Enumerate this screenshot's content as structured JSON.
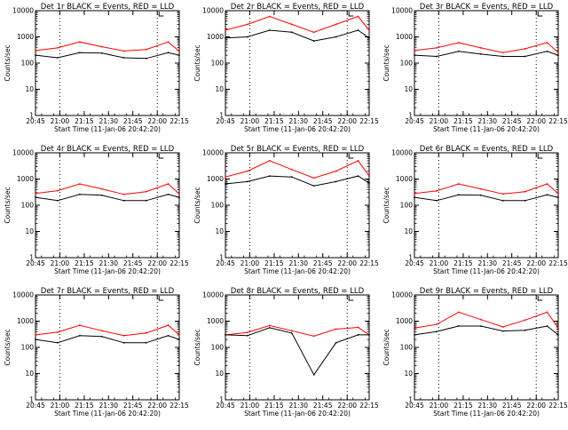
{
  "chart_data": [
    {
      "type": "line",
      "title": "Det 1r BLACK = Events, RED = LLD",
      "xlabel": "Start Time (11-Jan-06 20:42:20)",
      "ylabel": "Counts/sec",
      "yscale": "log",
      "ylim": [
        1,
        10000
      ],
      "xlim": [
        -4,
        35
      ],
      "xticks": [
        "20:45",
        "21:00",
        "21:15",
        "21:30",
        "21:45",
        "22:00",
        "22:15"
      ],
      "yticks": [
        "1",
        "10",
        "100",
        "1000",
        "10000"
      ],
      "vlines": [
        15,
        75
      ],
      "series": [
        {
          "name": "LLD",
          "color": "#ff0000",
          "x": [
            -4,
            2,
            8,
            14,
            20,
            26,
            32,
            35
          ],
          "y": [
            300,
            380,
            640,
            420,
            290,
            330,
            640,
            280
          ]
        },
        {
          "name": "Events",
          "color": "#000000",
          "x": [
            -4,
            2,
            8,
            14,
            20,
            26,
            32,
            35
          ],
          "y": [
            200,
            160,
            250,
            240,
            160,
            150,
            250,
            200
          ]
        }
      ]
    },
    {
      "type": "line",
      "title": "Det 2r BLACK = Events, RED = LLD",
      "xlabel": "Start Time (11-Jan-06 20:42:20)",
      "ylabel": "Counts/sec",
      "yscale": "log",
      "ylim": [
        1,
        10000
      ],
      "xlim": [
        -4,
        35
      ],
      "xticks": [
        "20:45",
        "21:00",
        "21:15",
        "21:30",
        "21:45",
        "22:00",
        "22:15"
      ],
      "yticks": [
        "1",
        "10",
        "100",
        "1000",
        "10000"
      ],
      "vlines": [
        15,
        75
      ],
      "series": [
        {
          "name": "LLD",
          "color": "#ff0000",
          "x": [
            -4,
            2,
            8,
            14,
            20,
            26,
            32,
            35
          ],
          "y": [
            1800,
            3000,
            6000,
            3000,
            1500,
            3000,
            6000,
            1800
          ]
        },
        {
          "name": "Events",
          "color": "#000000",
          "x": [
            -4,
            2,
            8,
            14,
            20,
            26,
            32,
            35
          ],
          "y": [
            900,
            1000,
            1800,
            1500,
            700,
            1000,
            1800,
            900
          ]
        }
      ]
    },
    {
      "type": "line",
      "title": "Det 3r BLACK = Events, RED = LLD",
      "xlabel": "Start Time (11-Jan-06 20:42:20)",
      "ylabel": "Counts/sec",
      "yscale": "log",
      "ylim": [
        1,
        10000
      ],
      "xlim": [
        -4,
        35
      ],
      "xticks": [
        "20:45",
        "21:00",
        "21:15",
        "21:30",
        "21:45",
        "22:00",
        "22:15"
      ],
      "yticks": [
        "1",
        "10",
        "100",
        "1000",
        "10000"
      ],
      "vlines": [
        15,
        75
      ],
      "series": [
        {
          "name": "LLD",
          "color": "#ff0000",
          "x": [
            -4,
            2,
            8,
            14,
            20,
            26,
            32,
            35
          ],
          "y": [
            300,
            380,
            600,
            380,
            250,
            350,
            600,
            250
          ]
        },
        {
          "name": "Events",
          "color": "#000000",
          "x": [
            -4,
            2,
            8,
            14,
            20,
            26,
            32,
            35
          ],
          "y": [
            200,
            180,
            280,
            220,
            180,
            180,
            280,
            200
          ]
        }
      ]
    },
    {
      "type": "line",
      "title": "Det 4r BLACK = Events, RED = LLD",
      "xlabel": "Start Time (11-Jan-06 20:42:20)",
      "ylabel": "Counts/sec",
      "yscale": "log",
      "ylim": [
        1,
        10000
      ],
      "xlim": [
        -4,
        35
      ],
      "xticks": [
        "20:45",
        "21:00",
        "21:15",
        "21:30",
        "21:45",
        "22:00",
        "22:15"
      ],
      "yticks": [
        "1",
        "10",
        "100",
        "1000",
        "10000"
      ],
      "vlines": [
        15,
        75
      ],
      "series": [
        {
          "name": "LLD",
          "color": "#ff0000",
          "x": [
            -4,
            2,
            8,
            14,
            20,
            26,
            32,
            35
          ],
          "y": [
            280,
            360,
            650,
            420,
            260,
            330,
            650,
            270
          ]
        },
        {
          "name": "Events",
          "color": "#000000",
          "x": [
            -4,
            2,
            8,
            14,
            20,
            26,
            32,
            35
          ],
          "y": [
            200,
            150,
            260,
            240,
            150,
            150,
            260,
            200
          ]
        }
      ]
    },
    {
      "type": "line",
      "title": "Det 5r BLACK = Events, RED = LLD",
      "xlabel": "Start Time (11-Jan-06 20:42:20)",
      "ylabel": "Counts/sec",
      "yscale": "log",
      "ylim": [
        1,
        10000
      ],
      "xlim": [
        -4,
        35
      ],
      "xticks": [
        "20:45",
        "21:00",
        "21:15",
        "21:30",
        "21:45",
        "22:00",
        "22:15"
      ],
      "yticks": [
        "1",
        "10",
        "100",
        "1000",
        "10000"
      ],
      "vlines": [
        15,
        75
      ],
      "series": [
        {
          "name": "LLD",
          "color": "#ff0000",
          "x": [
            -4,
            2,
            8,
            14,
            20,
            26,
            32,
            35
          ],
          "y": [
            1200,
            2000,
            5000,
            2300,
            1100,
            2000,
            5000,
            1300
          ]
        },
        {
          "name": "Events",
          "color": "#000000",
          "x": [
            -4,
            2,
            8,
            14,
            20,
            26,
            32,
            35
          ],
          "y": [
            650,
            800,
            1300,
            1200,
            550,
            800,
            1300,
            700
          ]
        }
      ]
    },
    {
      "type": "line",
      "title": "Det 6r BLACK = Events, RED = LLD",
      "xlabel": "Start Time (11-Jan-06 20:42:20)",
      "ylabel": "Counts/sec",
      "yscale": "log",
      "ylim": [
        1,
        10000
      ],
      "xlim": [
        -4,
        35
      ],
      "xticks": [
        "20:45",
        "21:00",
        "21:15",
        "21:30",
        "21:45",
        "22:00",
        "22:15"
      ],
      "yticks": [
        "1",
        "10",
        "100",
        "1000",
        "10000"
      ],
      "vlines": [
        15,
        75
      ],
      "series": [
        {
          "name": "LLD",
          "color": "#ff0000",
          "x": [
            -4,
            2,
            8,
            14,
            20,
            26,
            32,
            35
          ],
          "y": [
            280,
            350,
            650,
            420,
            270,
            330,
            650,
            280
          ]
        },
        {
          "name": "Events",
          "color": "#000000",
          "x": [
            -4,
            2,
            8,
            14,
            20,
            26,
            32,
            35
          ],
          "y": [
            200,
            150,
            250,
            240,
            150,
            150,
            250,
            200
          ]
        }
      ]
    },
    {
      "type": "line",
      "title": "Det 7r BLACK = Events, RED = LLD",
      "xlabel": "Start Time (11-Jan-06 20:42:20)",
      "ylabel": "Counts/sec",
      "yscale": "log",
      "ylim": [
        1,
        10000
      ],
      "xlim": [
        -4,
        35
      ],
      "xticks": [
        "20:45",
        "21:00",
        "21:15",
        "21:30",
        "21:45",
        "22:00",
        "22:15"
      ],
      "yticks": [
        "1",
        "10",
        "100",
        "1000",
        "10000"
      ],
      "vlines": [
        15,
        75
      ],
      "series": [
        {
          "name": "LLD",
          "color": "#ff0000",
          "x": [
            -4,
            2,
            8,
            14,
            20,
            26,
            32,
            35
          ],
          "y": [
            300,
            380,
            700,
            430,
            280,
            350,
            700,
            300
          ]
        },
        {
          "name": "Events",
          "color": "#000000",
          "x": [
            -4,
            2,
            8,
            14,
            20,
            26,
            32,
            35
          ],
          "y": [
            200,
            150,
            280,
            260,
            150,
            150,
            280,
            200
          ]
        }
      ]
    },
    {
      "type": "line",
      "title": "Det 8r BLACK = Events, RED = LLD",
      "xlabel": "Start Time (11-Jan-06 20:42:20)",
      "ylabel": "Counts/sec",
      "yscale": "log",
      "ylim": [
        1,
        10000
      ],
      "xlim": [
        -4,
        35
      ],
      "xticks": [
        "20:45",
        "21:00",
        "21:15",
        "21:30",
        "21:45",
        "22:00",
        "22:15"
      ],
      "yticks": [
        "1",
        "10",
        "100",
        "1000",
        "10000"
      ],
      "vlines": [
        15,
        75
      ],
      "series": [
        {
          "name": "LLD",
          "color": "#ff0000",
          "x": [
            -4,
            2,
            8,
            14,
            20,
            26,
            32,
            35
          ],
          "y": [
            300,
            370,
            680,
            430,
            270,
            500,
            580,
            300
          ]
        },
        {
          "name": "Events",
          "color": "#000000",
          "x": [
            -4,
            2,
            8,
            14,
            20,
            26,
            32,
            35
          ],
          "y": [
            300,
            280,
            560,
            350,
            9,
            150,
            300,
            300
          ]
        }
      ]
    },
    {
      "type": "line",
      "title": "Det 9r BLACK = Events, RED = LLD",
      "xlabel": "Start Time (11-Jan-06 20:42:20)",
      "ylabel": "Counts/sec",
      "yscale": "log",
      "ylim": [
        1,
        10000
      ],
      "xlim": [
        -4,
        35
      ],
      "xticks": [
        "20:45",
        "21:00",
        "21:15",
        "21:30",
        "21:45",
        "22:00",
        "22:15"
      ],
      "yticks": [
        "1",
        "10",
        "100",
        "1000",
        "10000"
      ],
      "vlines": [
        15,
        75
      ],
      "series": [
        {
          "name": "LLD",
          "color": "#ff0000",
          "x": [
            -4,
            2,
            8,
            14,
            20,
            26,
            32,
            35
          ],
          "y": [
            550,
            750,
            2200,
            1150,
            600,
            1100,
            2200,
            550
          ]
        },
        {
          "name": "Events",
          "color": "#000000",
          "x": [
            -4,
            2,
            8,
            14,
            20,
            26,
            32,
            35
          ],
          "y": [
            300,
            400,
            650,
            650,
            420,
            450,
            650,
            300
          ]
        }
      ]
    }
  ]
}
